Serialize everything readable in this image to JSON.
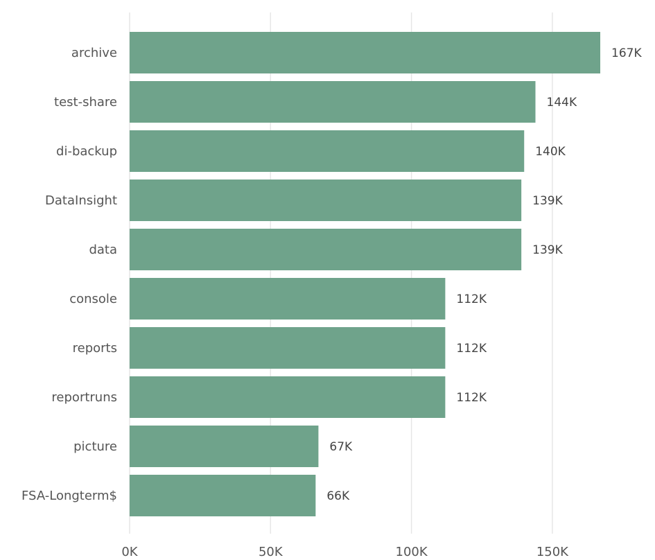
{
  "chart_data": {
    "type": "bar",
    "orientation": "horizontal",
    "categories": [
      "archive",
      "test-share",
      "di-backup",
      "DataInsight",
      "data",
      "console",
      "reports",
      "reportruns",
      "picture",
      "FSA-Longterm$"
    ],
    "values": [
      167000,
      144000,
      140000,
      139000,
      139000,
      112000,
      112000,
      112000,
      67000,
      66000
    ],
    "value_labels": [
      "167K",
      "144K",
      "140K",
      "139K",
      "139K",
      "112K",
      "112K",
      "112K",
      "67K",
      "66K"
    ],
    "title": "",
    "xlabel": "",
    "ylabel": "",
    "xlim": [
      0,
      180000
    ],
    "x_ticks": [
      0,
      50000,
      100000,
      150000
    ],
    "x_tick_labels": [
      "0K",
      "50K",
      "100K",
      "150K"
    ],
    "grid": true,
    "bar_color": "#6fa38b"
  }
}
